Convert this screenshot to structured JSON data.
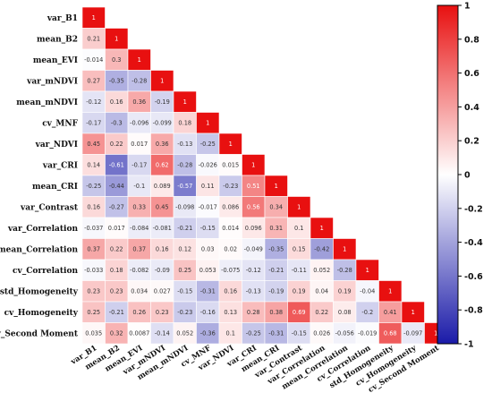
{
  "chart_data": {
    "type": "heatmap",
    "layout": "lower-triangle correlation matrix",
    "variables": [
      "var_B1",
      "mean_B2",
      "mean_EVI",
      "var_mNDVI",
      "mean_mNDVI",
      "cv_MNF",
      "var_NDVI",
      "var_CRI",
      "mean_CRI",
      "var_Contrast",
      "var_Correlation",
      "mean_Correlation",
      "cv_Correlation",
      "std_Homogeneity",
      "cv_Homogeneity",
      "cv_Second Moment"
    ],
    "matrix": [
      [
        "1"
      ],
      [
        "0.21",
        "1"
      ],
      [
        "-0.014",
        "0.3",
        "1"
      ],
      [
        "0.27",
        "-0.35",
        "-0.28",
        "1"
      ],
      [
        "-0.12",
        "0.16",
        "0.36",
        "-0.19",
        "1"
      ],
      [
        "-0.17",
        "-0.3",
        "-0.096",
        "-0.099",
        "0.18",
        "1"
      ],
      [
        "0.45",
        "0.22",
        "0.017",
        "0.36",
        "-0.13",
        "-0.25",
        "1"
      ],
      [
        "0.14",
        "-0.61",
        "-0.17",
        "0.62",
        "-0.28",
        "-0.026",
        "0.015",
        "1"
      ],
      [
        "-0.25",
        "-0.44",
        "-0.1",
        "0.089",
        "-0.57",
        "0.11",
        "-0.23",
        "0.51",
        "1"
      ],
      [
        "0.16",
        "-0.27",
        "0.33",
        "0.45",
        "-0.098",
        "-0.017",
        "0.086",
        "0.56",
        "0.34",
        "1"
      ],
      [
        "-0.037",
        "0.017",
        "-0.084",
        "-0.081",
        "-0.21",
        "-0.15",
        "0.014",
        "0.096",
        "0.31",
        "0.1",
        "1"
      ],
      [
        "0.37",
        "0.22",
        "0.37",
        "0.16",
        "0.12",
        "0.03",
        "0.02",
        "-0.049",
        "-0.35",
        "0.15",
        "-0.42",
        "1"
      ],
      [
        "-0.033",
        "0.18",
        "-0.082",
        "-0.09",
        "0.25",
        "0.053",
        "-0.075",
        "-0.12",
        "-0.21",
        "-0.11",
        "0.052",
        "-0.28",
        "1"
      ],
      [
        "0.23",
        "0.23",
        "0.034",
        "0.027",
        "-0.15",
        "-0.31",
        "0.16",
        "-0.13",
        "-0.19",
        "0.19",
        "0.04",
        "0.19",
        "-0.04",
        "1"
      ],
      [
        "0.25",
        "-0.21",
        "0.26",
        "0.23",
        "-0.23",
        "-0.16",
        "0.13",
        "0.28",
        "0.38",
        "0.69",
        "0.22",
        "0.08",
        "-0.2",
        "0.41",
        "1"
      ],
      [
        "0.035",
        "0.32",
        "0.0087",
        "-0.14",
        "0.052",
        "-0.36",
        "0.1",
        "-0.25",
        "-0.31",
        "-0.15",
        "0.026",
        "-0.056",
        "-0.019",
        "0.68",
        "-0.097",
        "1"
      ]
    ],
    "colorbar": {
      "range": [
        -1,
        1
      ],
      "ticks": [
        "1",
        "0.8",
        "0.6",
        "0.4",
        "0.2",
        "0",
        "-0.2",
        "-0.4",
        "-0.6",
        "-0.8",
        "-1"
      ],
      "colors": {
        "negative": "#1a1aa8",
        "neutral": "#ffffff",
        "positive": "#e81010"
      }
    },
    "grid": false,
    "legend_position": "right"
  }
}
